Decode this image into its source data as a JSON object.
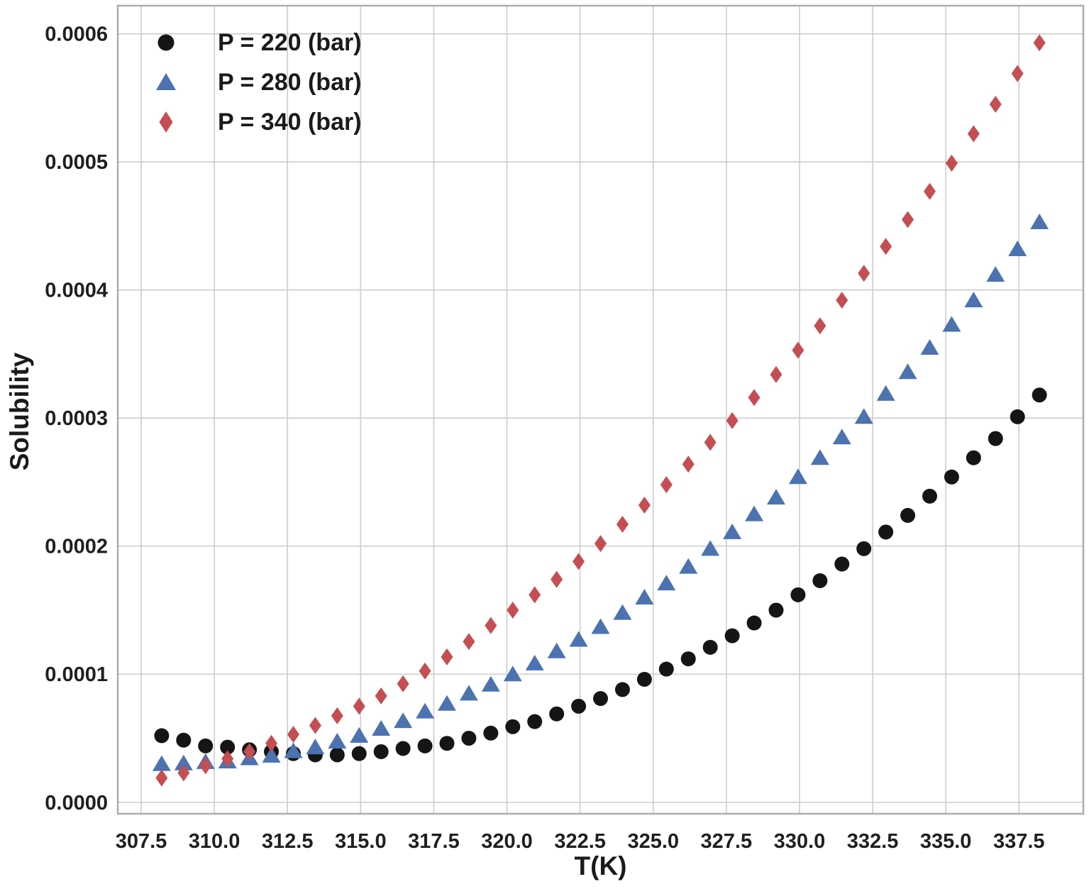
{
  "chart_data": {
    "type": "scatter",
    "title": "",
    "xlabel": "T(K)",
    "ylabel": "Solubility",
    "xlim": [
      306.7,
      339.7
    ],
    "ylim": [
      -9e-06,
      0.000622
    ],
    "grid": true,
    "legend_position": "upper left",
    "x_ticks": [
      307.5,
      310.0,
      312.5,
      315.0,
      317.5,
      320.0,
      322.5,
      325.0,
      327.5,
      330.0,
      332.5,
      335.0,
      337.5
    ],
    "x_tick_labels": [
      "307.5",
      "310.0",
      "312.5",
      "315.0",
      "317.5",
      "320.0",
      "322.5",
      "325.0",
      "327.5",
      "330.0",
      "332.5",
      "335.0",
      "337.5"
    ],
    "y_ticks": [
      0.0,
      0.0001,
      0.0002,
      0.0003,
      0.0004,
      0.0005,
      0.0006
    ],
    "y_tick_labels": [
      "0.0000",
      "0.0001",
      "0.0002",
      "0.0003",
      "0.0004",
      "0.0005",
      "0.0006"
    ],
    "x": [
      308.2,
      308.95,
      309.7,
      310.45,
      311.2,
      311.95,
      312.7,
      313.45,
      314.2,
      314.95,
      315.7,
      316.45,
      317.2,
      317.95,
      318.7,
      319.45,
      320.2,
      320.95,
      321.7,
      322.45,
      323.2,
      323.95,
      324.7,
      325.45,
      326.2,
      326.95,
      327.7,
      328.45,
      329.2,
      329.95,
      330.7,
      331.45,
      332.2,
      332.95,
      333.7,
      334.45,
      335.2,
      335.95,
      336.7,
      337.45,
      338.2
    ],
    "series": [
      {
        "name": "P = 220 (bar)",
        "marker": "circle",
        "color": "#151515",
        "values": [
          5.2e-05,
          4.85e-05,
          4.4e-05,
          4.3e-05,
          4.1e-05,
          3.95e-05,
          3.8e-05,
          3.7e-05,
          3.7e-05,
          3.8e-05,
          3.95e-05,
          4.2e-05,
          4.4e-05,
          4.6e-05,
          5e-05,
          5.4e-05,
          5.9e-05,
          6.3e-05,
          6.9e-05,
          7.5e-05,
          8.1e-05,
          8.8e-05,
          9.6e-05,
          0.000104,
          0.000112,
          0.000121,
          0.00013,
          0.00014,
          0.00015,
          0.000162,
          0.000173,
          0.000186,
          0.000198,
          0.000211,
          0.000224,
          0.000239,
          0.000254,
          0.000269,
          0.000284,
          0.000301,
          0.000318
        ]
      },
      {
        "name": "P = 280 (bar)",
        "marker": "triangle",
        "color": "#4C72B0",
        "values": [
          3e-05,
          3.05e-05,
          3.15e-05,
          3.2e-05,
          3.45e-05,
          3.65e-05,
          4e-05,
          4.3e-05,
          4.75e-05,
          5.2e-05,
          5.75e-05,
          6.35e-05,
          7.1e-05,
          7.7e-05,
          8.5e-05,
          9.2e-05,
          0.0001,
          0.0001085,
          0.000118,
          0.000127,
          0.000137,
          0.000148,
          0.00016,
          0.000171,
          0.000184,
          0.000198,
          0.000211,
          0.000225,
          0.000238,
          0.000254,
          0.000269,
          0.000285,
          0.000301,
          0.000319,
          0.000336,
          0.000355,
          0.000373,
          0.000392,
          0.000412,
          0.000432,
          0.000453
        ]
      },
      {
        "name": "P = 340 (bar)",
        "marker": "diamond",
        "color": "#C44E52",
        "values": [
          1.9e-05,
          2.3e-05,
          2.85e-05,
          3.4e-05,
          3.95e-05,
          4.6e-05,
          5.3e-05,
          6e-05,
          6.75e-05,
          7.5e-05,
          8.3e-05,
          9.25e-05,
          0.0001025,
          0.0001135,
          0.0001255,
          0.000138,
          0.00015,
          0.000162,
          0.000174,
          0.000188,
          0.000202,
          0.000217,
          0.000232,
          0.000248,
          0.000264,
          0.000281,
          0.000298,
          0.000316,
          0.000334,
          0.000353,
          0.000372,
          0.000392,
          0.000413,
          0.000434,
          0.000455,
          0.000477,
          0.000499,
          0.000522,
          0.000545,
          0.000569,
          0.000593
        ]
      }
    ]
  }
}
